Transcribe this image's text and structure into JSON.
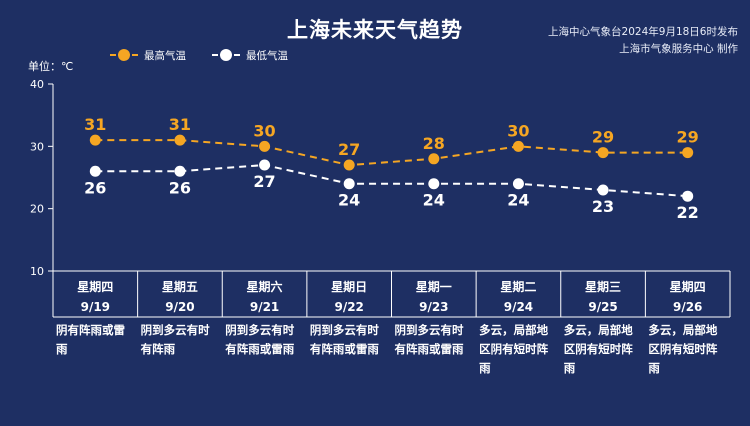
{
  "title": "上海未来天气趋势",
  "source_lines": [
    "上海中心气象台2024年9月18日6时发布",
    "上海市气象服务中心 制作"
  ],
  "unit_label": "单位：℃",
  "colors": {
    "background": "#1e2f63",
    "high": "#f5a623",
    "low": "#ffffff",
    "axis": "#ffffff"
  },
  "chart_data": {
    "type": "line",
    "ylim": [
      10,
      40
    ],
    "yticks": [
      10,
      20,
      30,
      40
    ],
    "grid": false,
    "legend_position": "top-left",
    "categories": [
      {
        "weekday": "星期四",
        "date": "9/19",
        "desc": "阴有阵雨或雷雨"
      },
      {
        "weekday": "星期五",
        "date": "9/20",
        "desc": "阴到多云有时有阵雨"
      },
      {
        "weekday": "星期六",
        "date": "9/21",
        "desc": "阴到多云有时有阵雨或雷雨"
      },
      {
        "weekday": "星期日",
        "date": "9/22",
        "desc": "阴到多云有时有阵雨或雷雨"
      },
      {
        "weekday": "星期一",
        "date": "9/23",
        "desc": "阴到多云有时有阵雨或雷雨"
      },
      {
        "weekday": "星期二",
        "date": "9/24",
        "desc": "多云，局部地区阴有短时阵雨"
      },
      {
        "weekday": "星期三",
        "date": "9/25",
        "desc": "多云，局部地区阴有短时阵雨"
      },
      {
        "weekday": "星期四",
        "date": "9/26",
        "desc": "多云，局部地区阴有短时阵雨"
      }
    ],
    "series": [
      {
        "name": "最高气温",
        "color": "#f5a623",
        "values": [
          31,
          31,
          30,
          27,
          28,
          30,
          29,
          29
        ]
      },
      {
        "name": "最低气温",
        "color": "#ffffff",
        "values": [
          26,
          26,
          27,
          24,
          24,
          24,
          23,
          22
        ]
      }
    ]
  }
}
